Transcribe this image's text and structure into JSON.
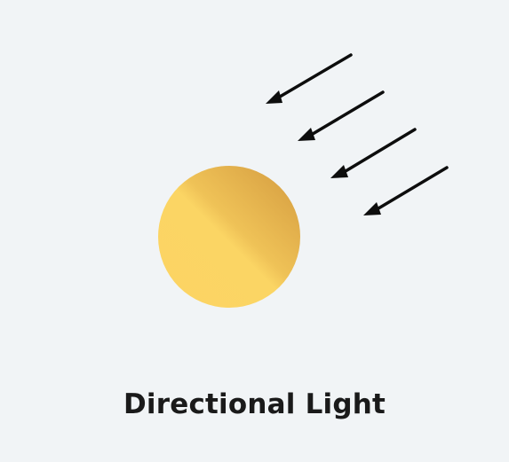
{
  "caption": "Directional Light",
  "colors": {
    "background": "#f1f4f6",
    "sphere_light": "#fcd463",
    "sphere_mid": "#f7cd5d",
    "sphere_dark": "#d9a443",
    "arrow": "#0d0d0d",
    "caption": "#1a1a1a"
  },
  "icons": {
    "sphere": "sun-sphere-icon",
    "arrows": "light-ray-arrow-icon"
  }
}
